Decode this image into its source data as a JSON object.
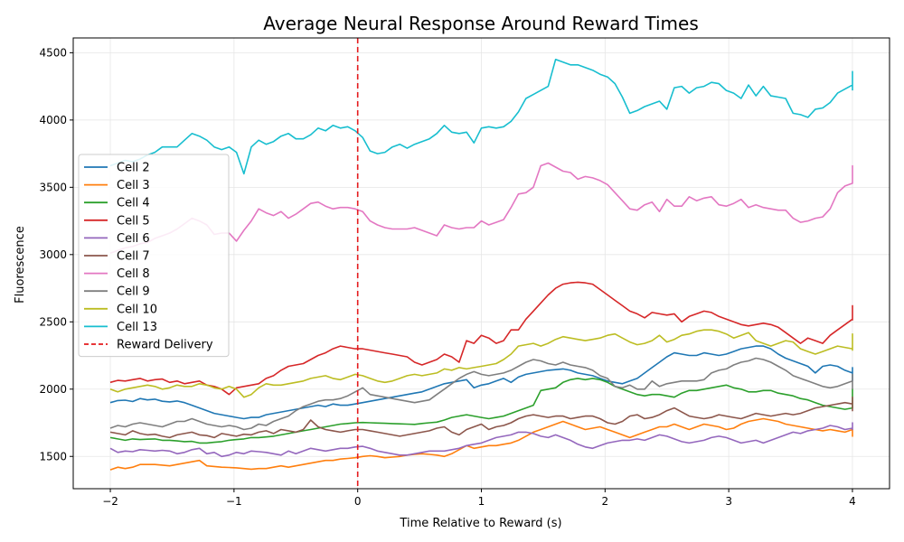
{
  "chart_data": {
    "type": "line",
    "title": "Average Neural Response Around Reward Times",
    "xlabel": "Time Relative to Reward (s)",
    "ylabel": "Fluorescence",
    "xlim": [
      -2.3,
      4.3
    ],
    "ylim": [
      1260,
      4610
    ],
    "xticks": [
      -2,
      -1,
      0,
      1,
      2,
      3,
      4
    ],
    "xtick_labels": [
      "−2",
      "−1",
      "0",
      "1",
      "2",
      "3",
      "4"
    ],
    "yticks": [
      1500,
      2000,
      2500,
      3000,
      3500,
      4000,
      4500
    ],
    "grid": true,
    "legend_position": "center-left",
    "x_start": -2,
    "x_step": 0.06,
    "series": [
      {
        "name": "Cell 2",
        "color": "#1f77b4",
        "values": [
          1900,
          1915,
          1918,
          1908,
          1930,
          1920,
          1925,
          1910,
          1905,
          1912,
          1900,
          1880,
          1860,
          1840,
          1820,
          1810,
          1800,
          1790,
          1780,
          1790,
          1790,
          1810,
          1820,
          1830,
          1840,
          1850,
          1860,
          1870,
          1880,
          1870,
          1890,
          1880,
          1880,
          1890,
          1900,
          1910,
          1920,
          1930,
          1940,
          1950,
          1960,
          1970,
          1980,
          2000,
          2020,
          2040,
          2050,
          2060,
          2070,
          2010,
          2030,
          2040,
          2060,
          2080,
          2050,
          2090,
          2110,
          2120,
          2130,
          2140,
          2145,
          2150,
          2140,
          2120,
          2110,
          2100,
          2080,
          2060,
          2050,
          2040,
          2060,
          2080,
          2120,
          2160,
          2200,
          2240,
          2270,
          2260,
          2250,
          2250,
          2270,
          2260,
          2250,
          2260,
          2280,
          2300,
          2310,
          2320,
          2320,
          2300,
          2260,
          2230,
          2210,
          2190,
          2170,
          2120,
          2170,
          2180,
          2170,
          2140,
          2120,
          2140,
          2130,
          2120,
          2140,
          2160,
          2150,
          2140,
          2120,
          2100,
          2060
        ]
      },
      {
        "name": "Cell 3",
        "color": "#ff7f0e",
        "values": [
          1400,
          1420,
          1410,
          1420,
          1440,
          1440,
          1440,
          1435,
          1430,
          1440,
          1450,
          1460,
          1470,
          1430,
          1425,
          1420,
          1418,
          1415,
          1410,
          1405,
          1410,
          1410,
          1420,
          1430,
          1420,
          1430,
          1440,
          1450,
          1460,
          1470,
          1470,
          1480,
          1485,
          1490,
          1500,
          1505,
          1500,
          1490,
          1495,
          1500,
          1510,
          1515,
          1520,
          1515,
          1510,
          1500,
          1520,
          1550,
          1580,
          1560,
          1570,
          1580,
          1580,
          1590,
          1600,
          1620,
          1650,
          1680,
          1700,
          1720,
          1740,
          1760,
          1740,
          1720,
          1700,
          1710,
          1720,
          1700,
          1680,
          1660,
          1640,
          1660,
          1680,
          1700,
          1720,
          1720,
          1740,
          1720,
          1700,
          1720,
          1740,
          1730,
          1720,
          1700,
          1710,
          1740,
          1760,
          1770,
          1780,
          1770,
          1760,
          1740,
          1730,
          1720,
          1710,
          1700,
          1690,
          1700,
          1690,
          1680,
          1700,
          1680,
          1690,
          1680,
          1670,
          1660,
          1680,
          1660,
          1650,
          1660,
          1670
        ]
      },
      {
        "name": "Cell 4",
        "color": "#2ca02c",
        "values": [
          1640,
          1630,
          1620,
          1630,
          1625,
          1628,
          1630,
          1620,
          1620,
          1615,
          1610,
          1612,
          1600,
          1600,
          1605,
          1610,
          1620,
          1625,
          1630,
          1640,
          1640,
          1645,
          1650,
          1660,
          1670,
          1680,
          1690,
          1700,
          1710,
          1720,
          1730,
          1740,
          1745,
          1750,
          1752,
          1750,
          1748,
          1746,
          1744,
          1742,
          1740,
          1738,
          1745,
          1750,
          1755,
          1770,
          1790,
          1800,
          1810,
          1800,
          1790,
          1780,
          1790,
          1800,
          1820,
          1840,
          1860,
          1880,
          1990,
          2000,
          2010,
          2050,
          2070,
          2080,
          2070,
          2080,
          2070,
          2050,
          2020,
          2000,
          1980,
          1960,
          1950,
          1960,
          1960,
          1950,
          1940,
          1970,
          1990,
          1990,
          2000,
          2010,
          2020,
          2030,
          2010,
          2000,
          1980,
          1980,
          1990,
          1990,
          1970,
          1960,
          1950,
          1930,
          1920,
          1900,
          1880,
          1870,
          1860,
          1850,
          1860,
          1870,
          1880,
          1900,
          1920,
          1930,
          1940,
          1950,
          1950,
          1970,
          1990,
          2000,
          1990,
          1980,
          1970
        ]
      },
      {
        "name": "Cell 5",
        "color": "#d62728",
        "values": [
          2050,
          2065,
          2060,
          2070,
          2080,
          2060,
          2070,
          2075,
          2050,
          2060,
          2040,
          2050,
          2060,
          2030,
          2020,
          2000,
          1960,
          2010,
          2020,
          2030,
          2040,
          2080,
          2100,
          2140,
          2170,
          2180,
          2190,
          2220,
          2250,
          2270,
          2300,
          2320,
          2310,
          2300,
          2300,
          2290,
          2280,
          2270,
          2260,
          2250,
          2240,
          2200,
          2180,
          2200,
          2220,
          2260,
          2240,
          2200,
          2360,
          2340,
          2400,
          2380,
          2340,
          2360,
          2440,
          2440,
          2520,
          2580,
          2640,
          2700,
          2750,
          2780,
          2790,
          2795,
          2790,
          2780,
          2740,
          2700,
          2660,
          2620,
          2580,
          2560,
          2530,
          2570,
          2560,
          2550,
          2560,
          2500,
          2540,
          2560,
          2580,
          2570,
          2540,
          2520,
          2500,
          2480,
          2470,
          2480,
          2490,
          2480,
          2460,
          2420,
          2380,
          2340,
          2380,
          2360,
          2340,
          2400,
          2440,
          2480,
          2520,
          2560,
          2600,
          2620,
          2600,
          2580,
          2560,
          2600,
          2560,
          2520,
          2540,
          2510
        ]
      },
      {
        "name": "Cell 6",
        "color": "#9467bd",
        "values": [
          1560,
          1530,
          1540,
          1535,
          1550,
          1545,
          1540,
          1545,
          1540,
          1520,
          1530,
          1550,
          1560,
          1520,
          1530,
          1500,
          1510,
          1530,
          1520,
          1540,
          1535,
          1530,
          1520,
          1510,
          1540,
          1520,
          1540,
          1560,
          1550,
          1540,
          1550,
          1560,
          1560,
          1570,
          1575,
          1560,
          1540,
          1530,
          1520,
          1510,
          1510,
          1520,
          1530,
          1540,
          1540,
          1540,
          1550,
          1560,
          1580,
          1590,
          1600,
          1620,
          1640,
          1650,
          1660,
          1680,
          1680,
          1670,
          1650,
          1640,
          1660,
          1640,
          1620,
          1590,
          1570,
          1560,
          1580,
          1600,
          1610,
          1620,
          1620,
          1630,
          1620,
          1640,
          1660,
          1650,
          1630,
          1610,
          1600,
          1610,
          1620,
          1640,
          1650,
          1640,
          1620,
          1600,
          1610,
          1620,
          1600,
          1620,
          1640,
          1660,
          1680,
          1670,
          1690,
          1700,
          1710,
          1730,
          1720,
          1700,
          1710,
          1720,
          1730,
          1750,
          1740,
          1720,
          1700,
          1720,
          1730
        ]
      },
      {
        "name": "Cell 7",
        "color": "#8c564b",
        "values": [
          1680,
          1670,
          1660,
          1690,
          1670,
          1660,
          1665,
          1650,
          1640,
          1660,
          1670,
          1680,
          1660,
          1655,
          1640,
          1670,
          1660,
          1650,
          1665,
          1660,
          1680,
          1690,
          1670,
          1700,
          1690,
          1680,
          1700,
          1770,
          1720,
          1700,
          1690,
          1680,
          1690,
          1700,
          1700,
          1690,
          1680,
          1670,
          1660,
          1650,
          1660,
          1670,
          1680,
          1690,
          1710,
          1720,
          1680,
          1660,
          1700,
          1720,
          1740,
          1700,
          1720,
          1730,
          1750,
          1780,
          1800,
          1810,
          1800,
          1790,
          1800,
          1800,
          1780,
          1790,
          1800,
          1800,
          1780,
          1750,
          1740,
          1760,
          1800,
          1810,
          1780,
          1790,
          1810,
          1840,
          1860,
          1830,
          1800,
          1790,
          1780,
          1790,
          1810,
          1800,
          1790,
          1780,
          1800,
          1820,
          1810,
          1800,
          1810,
          1820,
          1810,
          1820,
          1840,
          1860,
          1870,
          1880,
          1890,
          1900,
          1890,
          1880,
          1900,
          1940,
          1880,
          1880,
          1870,
          1860,
          1850,
          1840,
          1900
        ]
      },
      {
        "name": "Cell 8",
        "color": "#e377c2",
        "values": [
          3010,
          3030,
          3050,
          3060,
          3080,
          3090,
          3120,
          3140,
          3160,
          3190,
          3230,
          3270,
          3250,
          3220,
          3150,
          3160,
          3160,
          3100,
          3180,
          3250,
          3340,
          3310,
          3290,
          3320,
          3270,
          3300,
          3340,
          3380,
          3390,
          3360,
          3340,
          3350,
          3350,
          3340,
          3320,
          3250,
          3220,
          3200,
          3190,
          3190,
          3190,
          3200,
          3180,
          3160,
          3140,
          3220,
          3200,
          3190,
          3200,
          3200,
          3250,
          3220,
          3240,
          3260,
          3350,
          3450,
          3460,
          3500,
          3660,
          3680,
          3650,
          3620,
          3610,
          3560,
          3580,
          3570,
          3550,
          3520,
          3460,
          3400,
          3340,
          3330,
          3370,
          3390,
          3320,
          3410,
          3360,
          3360,
          3430,
          3400,
          3420,
          3430,
          3370,
          3360,
          3380,
          3410,
          3350,
          3370,
          3350,
          3340,
          3330,
          3330,
          3270,
          3240,
          3250,
          3270,
          3280,
          3340,
          3460,
          3510,
          3530,
          3580,
          3600,
          3630,
          3590,
          3590,
          3630,
          3660,
          3570
        ]
      },
      {
        "name": "Cell 9",
        "color": "#7f7f7f",
        "values": [
          1710,
          1730,
          1720,
          1740,
          1750,
          1740,
          1730,
          1720,
          1740,
          1760,
          1760,
          1780,
          1760,
          1740,
          1730,
          1720,
          1730,
          1720,
          1700,
          1710,
          1740,
          1730,
          1760,
          1780,
          1800,
          1840,
          1870,
          1890,
          1910,
          1920,
          1920,
          1930,
          1950,
          1980,
          2010,
          1960,
          1950,
          1940,
          1930,
          1920,
          1910,
          1900,
          1910,
          1920,
          1960,
          2000,
          2040,
          2080,
          2110,
          2130,
          2110,
          2100,
          2110,
          2120,
          2140,
          2170,
          2200,
          2220,
          2210,
          2190,
          2180,
          2200,
          2180,
          2170,
          2160,
          2140,
          2100,
          2080,
          2020,
          2010,
          2030,
          2000,
          2000,
          2060,
          2020,
          2040,
          2050,
          2060,
          2060,
          2060,
          2070,
          2120,
          2140,
          2150,
          2180,
          2200,
          2210,
          2230,
          2220,
          2200,
          2170,
          2140,
          2100,
          2080,
          2060,
          2040,
          2020,
          2010,
          2020,
          2040,
          2060,
          2040,
          2060,
          2080,
          2090,
          2100,
          2110,
          2100,
          2080,
          2060,
          2040,
          2010,
          2000
        ]
      },
      {
        "name": "Cell 10",
        "color": "#bcbd22",
        "values": [
          2000,
          1980,
          2000,
          2010,
          2020,
          2030,
          2020,
          2000,
          2010,
          2030,
          2020,
          2020,
          2040,
          2030,
          2010,
          2000,
          2020,
          2000,
          1940,
          1960,
          2010,
          2040,
          2030,
          2030,
          2040,
          2050,
          2060,
          2080,
          2090,
          2100,
          2080,
          2070,
          2090,
          2110,
          2100,
          2080,
          2060,
          2050,
          2060,
          2080,
          2100,
          2110,
          2100,
          2110,
          2120,
          2150,
          2140,
          2160,
          2150,
          2160,
          2170,
          2180,
          2190,
          2220,
          2260,
          2320,
          2330,
          2340,
          2320,
          2340,
          2370,
          2390,
          2380,
          2370,
          2360,
          2370,
          2380,
          2400,
          2410,
          2380,
          2350,
          2330,
          2340,
          2360,
          2400,
          2350,
          2370,
          2400,
          2410,
          2430,
          2440,
          2440,
          2430,
          2410,
          2380,
          2400,
          2420,
          2360,
          2340,
          2320,
          2340,
          2360,
          2350,
          2300,
          2280,
          2260,
          2280,
          2300,
          2320,
          2310,
          2300,
          2290,
          2360,
          2400,
          2410,
          2380,
          2370,
          2390,
          2400,
          2380,
          2360,
          2350,
          2340
        ]
      },
      {
        "name": "Cell 13",
        "color": "#17becf",
        "values": [
          3660,
          3680,
          3700,
          3690,
          3710,
          3740,
          3760,
          3800,
          3800,
          3800,
          3850,
          3900,
          3880,
          3850,
          3800,
          3780,
          3800,
          3760,
          3600,
          3800,
          3850,
          3820,
          3840,
          3880,
          3900,
          3860,
          3860,
          3890,
          3940,
          3920,
          3960,
          3940,
          3950,
          3920,
          3870,
          3770,
          3750,
          3760,
          3800,
          3820,
          3790,
          3820,
          3840,
          3860,
          3900,
          3960,
          3910,
          3900,
          3910,
          3830,
          3940,
          3950,
          3940,
          3950,
          3990,
          4060,
          4160,
          4190,
          4220,
          4250,
          4450,
          4430,
          4410,
          4410,
          4390,
          4370,
          4340,
          4320,
          4270,
          4170,
          4050,
          4070,
          4100,
          4120,
          4140,
          4080,
          4240,
          4250,
          4200,
          4240,
          4250,
          4280,
          4270,
          4220,
          4200,
          4160,
          4260,
          4180,
          4250,
          4180,
          4170,
          4160,
          4050,
          4040,
          4020,
          4080,
          4090,
          4130,
          4200,
          4230,
          4260,
          4310,
          4330,
          4300,
          4360,
          4290,
          4310,
          4340,
          4300,
          4230,
          4220
        ]
      }
    ],
    "reference_line": {
      "x": 0,
      "label": "Reward Delivery",
      "color": "#e41a1c"
    }
  }
}
